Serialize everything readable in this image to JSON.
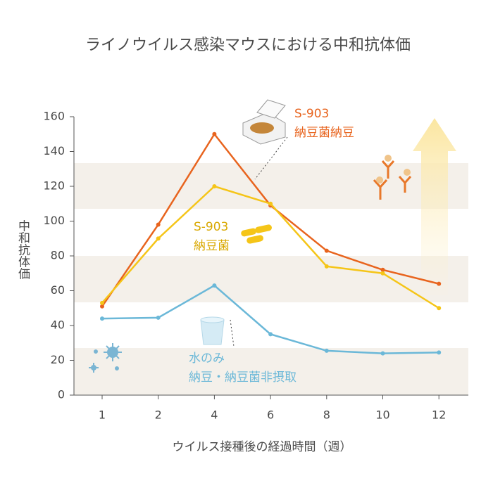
{
  "chart_data": {
    "type": "line",
    "title": "ライノウイルス感染マウスにおける中和抗体価",
    "y_label": "中和抗体価",
    "x_label": "ウイルス接種後の経過時間（週）",
    "categories": [
      "1",
      "2",
      "4",
      "6",
      "8",
      "10",
      "12"
    ],
    "ylim": [
      0,
      160
    ],
    "yticks": [
      0,
      20,
      40,
      60,
      80,
      100,
      120,
      140,
      160
    ],
    "series": [
      {
        "label_lines": [
          "S-903",
          "納豆菌納豆"
        ],
        "color": "#e8641e",
        "values": [
          51,
          98,
          150,
          109,
          83,
          72,
          64
        ]
      },
      {
        "label_lines": [
          "S-903",
          "納豆菌"
        ],
        "color": "#f5c518",
        "text_color": "#d9a800",
        "values": [
          53,
          90,
          120,
          110,
          74,
          70,
          50
        ]
      },
      {
        "label_lines": [
          "水のみ",
          "納豆・納豆菌非摂取"
        ],
        "color": "#6bb8d8",
        "values": [
          44,
          44.5,
          63,
          35,
          25.5,
          24,
          24.5
        ]
      }
    ]
  }
}
